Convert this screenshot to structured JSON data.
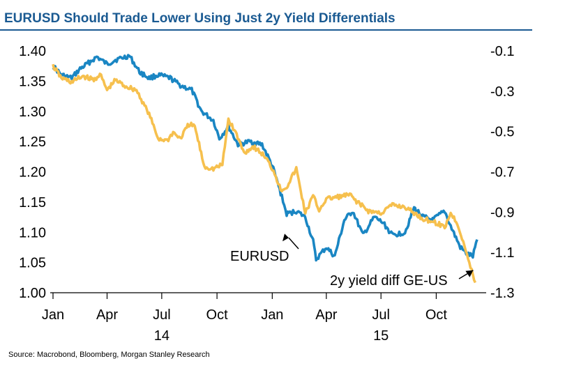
{
  "title": "EURUSD Should Trade Lower Using Just 2y Yield Differentials",
  "source": "Source: Macrobond, Bloomberg, Morgan Stanley Research",
  "chart_data": {
    "type": "line",
    "title": "EURUSD Should Trade Lower Using Just 2y Yield Differentials",
    "x_axis": {
      "type": "date",
      "range": [
        "2014-01-01",
        "2015-12-15"
      ],
      "month_ticks": [
        {
          "date": "2014-01-01",
          "label": "Jan"
        },
        {
          "date": "2014-04-01",
          "label": "Apr"
        },
        {
          "date": "2014-07-01",
          "label": "Jul"
        },
        {
          "date": "2014-10-01",
          "label": "Oct"
        },
        {
          "date": "2015-01-01",
          "label": "Jan"
        },
        {
          "date": "2015-04-01",
          "label": "Apr"
        },
        {
          "date": "2015-07-01",
          "label": "Jul"
        },
        {
          "date": "2015-10-01",
          "label": "Oct"
        }
      ],
      "year_labels": [
        {
          "date": "2014-07-01",
          "label": "14"
        },
        {
          "date": "2015-07-01",
          "label": "15"
        }
      ]
    },
    "y_left": {
      "range": [
        1.0,
        1.4
      ],
      "ticks": [
        1.4,
        1.35,
        1.3,
        1.25,
        1.2,
        1.15,
        1.1,
        1.05,
        1.0
      ],
      "tick_labels": [
        "1.40",
        "1.35",
        "1.30",
        "1.25",
        "1.20",
        "1.15",
        "1.10",
        "1.05",
        "1.00"
      ]
    },
    "y_right": {
      "range": [
        -1.3,
        -0.1
      ],
      "ticks": [
        -0.1,
        -0.3,
        -0.5,
        -0.7,
        -0.9,
        -1.1,
        -1.3
      ],
      "tick_labels": [
        "-0.1",
        "-0.3",
        "-0.5",
        "-0.7",
        "-0.9",
        "-1.1",
        "-1.3"
      ]
    },
    "grid": false,
    "legend": "none",
    "series": [
      {
        "name": "EURUSD",
        "axis": "left",
        "color": "#1a86c3",
        "points": [
          [
            "2014-01-01",
            1.375
          ],
          [
            "2014-01-15",
            1.36
          ],
          [
            "2014-02-01",
            1.355
          ],
          [
            "2014-02-15",
            1.37
          ],
          [
            "2014-03-01",
            1.38
          ],
          [
            "2014-03-15",
            1.39
          ],
          [
            "2014-04-01",
            1.378
          ],
          [
            "2014-04-15",
            1.385
          ],
          [
            "2014-05-08",
            1.392
          ],
          [
            "2014-05-25",
            1.365
          ],
          [
            "2014-06-10",
            1.355
          ],
          [
            "2014-06-25",
            1.36
          ],
          [
            "2014-07-15",
            1.355
          ],
          [
            "2014-08-01",
            1.343
          ],
          [
            "2014-08-20",
            1.335
          ],
          [
            "2014-09-05",
            1.3
          ],
          [
            "2014-09-25",
            1.285
          ],
          [
            "2014-10-05",
            1.255
          ],
          [
            "2014-10-20",
            1.275
          ],
          [
            "2014-11-05",
            1.245
          ],
          [
            "2014-11-25",
            1.25
          ],
          [
            "2014-12-15",
            1.245
          ],
          [
            "2015-01-01",
            1.21
          ],
          [
            "2015-01-15",
            1.165
          ],
          [
            "2015-01-25",
            1.13
          ],
          [
            "2015-02-10",
            1.135
          ],
          [
            "2015-02-25",
            1.125
          ],
          [
            "2015-03-10",
            1.085
          ],
          [
            "2015-03-15",
            1.055
          ],
          [
            "2015-04-01",
            1.075
          ],
          [
            "2015-04-15",
            1.06
          ],
          [
            "2015-05-01",
            1.12
          ],
          [
            "2015-05-15",
            1.135
          ],
          [
            "2015-06-01",
            1.095
          ],
          [
            "2015-06-20",
            1.125
          ],
          [
            "2015-07-05",
            1.115
          ],
          [
            "2015-07-20",
            1.095
          ],
          [
            "2015-08-10",
            1.1
          ],
          [
            "2015-08-25",
            1.14
          ],
          [
            "2015-09-10",
            1.125
          ],
          [
            "2015-09-25",
            1.12
          ],
          [
            "2015-10-15",
            1.135
          ],
          [
            "2015-10-25",
            1.11
          ],
          [
            "2015-11-10",
            1.075
          ],
          [
            "2015-11-20",
            1.065
          ],
          [
            "2015-12-01",
            1.06
          ],
          [
            "2015-12-08",
            1.088
          ]
        ]
      },
      {
        "name": "2y yield diff GE-US",
        "axis": "right",
        "color": "#f6c04e",
        "points": [
          [
            "2014-01-01",
            -0.175
          ],
          [
            "2014-01-15",
            -0.235
          ],
          [
            "2014-02-01",
            -0.255
          ],
          [
            "2014-02-20",
            -0.225
          ],
          [
            "2014-03-10",
            -0.245
          ],
          [
            "2014-03-20",
            -0.215
          ],
          [
            "2014-04-01",
            -0.295
          ],
          [
            "2014-04-15",
            -0.245
          ],
          [
            "2014-05-01",
            -0.275
          ],
          [
            "2014-05-20",
            -0.295
          ],
          [
            "2014-06-10",
            -0.415
          ],
          [
            "2014-06-25",
            -0.535
          ],
          [
            "2014-07-10",
            -0.545
          ],
          [
            "2014-07-20",
            -0.505
          ],
          [
            "2014-08-01",
            -0.535
          ],
          [
            "2014-08-15",
            -0.465
          ],
          [
            "2014-08-25",
            -0.475
          ],
          [
            "2014-09-10",
            -0.675
          ],
          [
            "2014-09-25",
            -0.685
          ],
          [
            "2014-10-10",
            -0.665
          ],
          [
            "2014-10-20",
            -0.44
          ],
          [
            "2014-11-01",
            -0.505
          ],
          [
            "2014-11-15",
            -0.605
          ],
          [
            "2014-12-01",
            -0.575
          ],
          [
            "2014-12-20",
            -0.625
          ],
          [
            "2015-01-05",
            -0.705
          ],
          [
            "2015-01-15",
            -0.79
          ],
          [
            "2015-01-25",
            -0.775
          ],
          [
            "2015-02-10",
            -0.685
          ],
          [
            "2015-02-25",
            -0.905
          ],
          [
            "2015-03-10",
            -0.82
          ],
          [
            "2015-03-20",
            -0.89
          ],
          [
            "2015-04-01",
            -0.835
          ],
          [
            "2015-04-20",
            -0.825
          ],
          [
            "2015-05-10",
            -0.815
          ],
          [
            "2015-05-25",
            -0.855
          ],
          [
            "2015-06-10",
            -0.895
          ],
          [
            "2015-07-01",
            -0.905
          ],
          [
            "2015-07-20",
            -0.865
          ],
          [
            "2015-08-10",
            -0.875
          ],
          [
            "2015-08-25",
            -0.905
          ],
          [
            "2015-09-10",
            -0.935
          ],
          [
            "2015-09-25",
            -0.945
          ],
          [
            "2015-10-15",
            -0.975
          ],
          [
            "2015-10-25",
            -0.905
          ],
          [
            "2015-11-05",
            -0.955
          ],
          [
            "2015-11-15",
            -1.045
          ],
          [
            "2015-11-25",
            -1.155
          ],
          [
            "2015-12-05",
            -1.25
          ]
        ]
      }
    ],
    "annotations": [
      {
        "text": "EURUSD",
        "series": "EURUSD",
        "arrow_to": [
          "2015-02-01",
          1.1
        ]
      },
      {
        "text": "2y yield diff GE-US",
        "series": "2y yield diff GE-US",
        "arrow_to": [
          "2015-12-05",
          -1.185
        ]
      }
    ]
  }
}
